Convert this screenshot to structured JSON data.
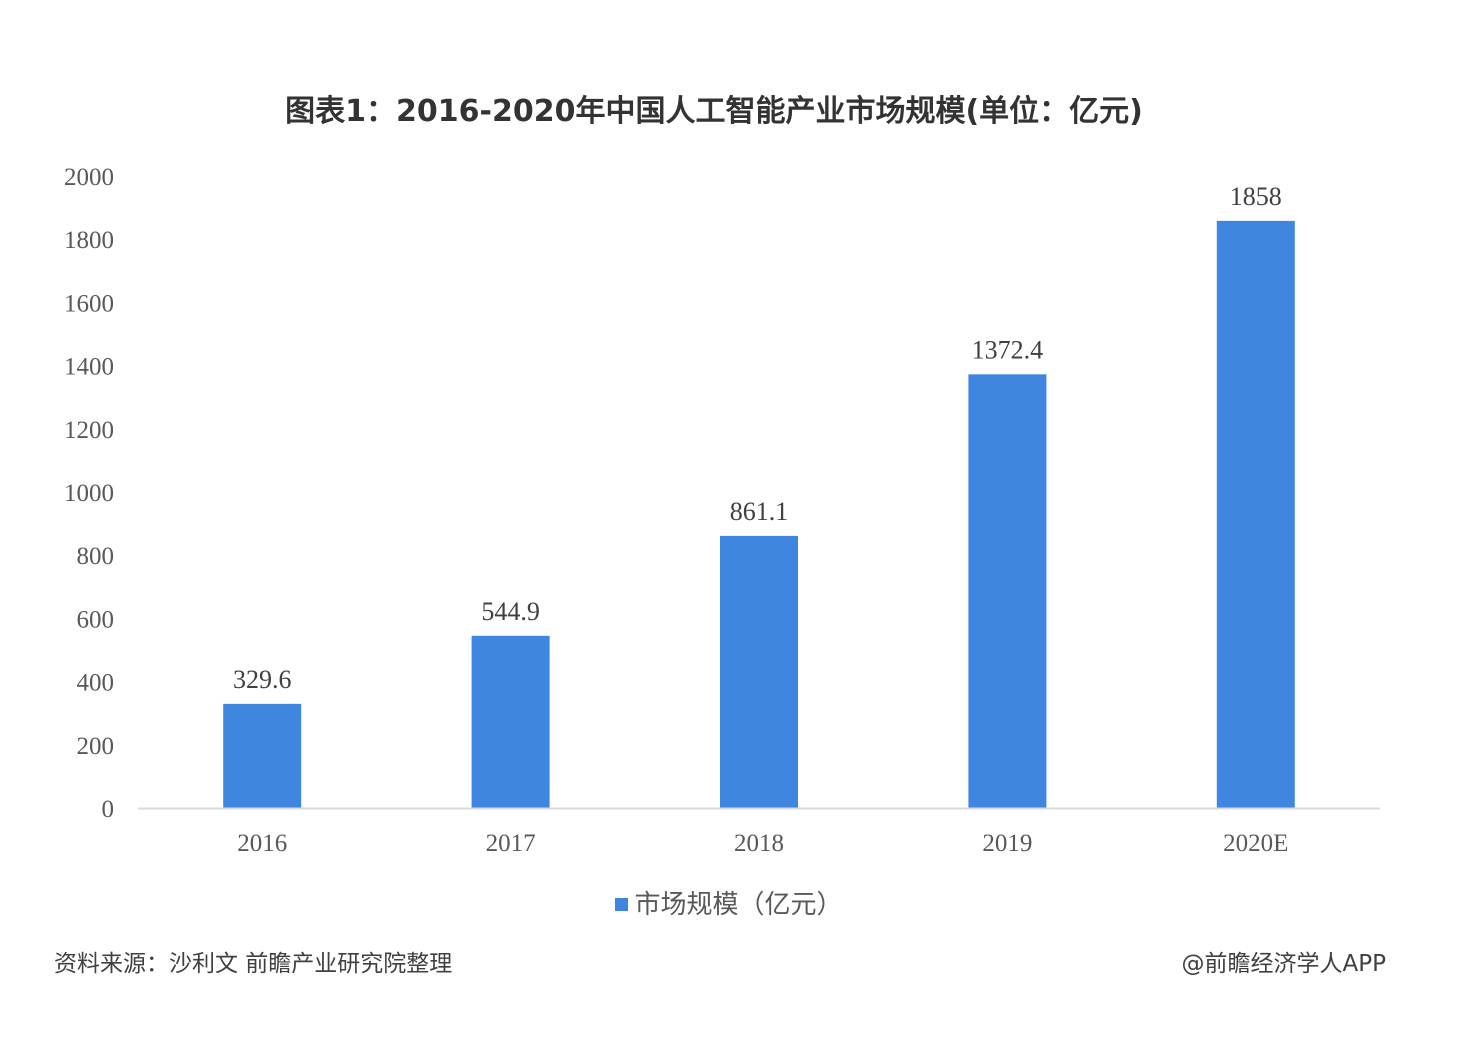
{
  "chart_data": {
    "type": "bar",
    "title": "图表1：2016-2020年中国人工智能产业市场规模(单位：亿元)",
    "categories": [
      "2016",
      "2017",
      "2018",
      "2019",
      "2020E"
    ],
    "series": [
      {
        "name": "市场规模（亿元）",
        "values": [
          329.6,
          544.9,
          861.1,
          1372.4,
          1858
        ],
        "labels": [
          "329.6",
          "544.9",
          "861.1",
          "1372.4",
          "1858"
        ]
      }
    ],
    "ylim": [
      0,
      2000
    ],
    "yticks": [
      0,
      200,
      400,
      600,
      800,
      1000,
      1200,
      1400,
      1600,
      1800,
      2000
    ],
    "xlabel": "",
    "ylabel": "",
    "grid": false,
    "legend": "bottom",
    "colors": {
      "bar": "#3f86e0",
      "axis": "#d9d9d9"
    }
  },
  "footer": {
    "source": "资料来源：沙利文 前瞻产业研究院整理",
    "credit": "@前瞻经济学人APP"
  }
}
